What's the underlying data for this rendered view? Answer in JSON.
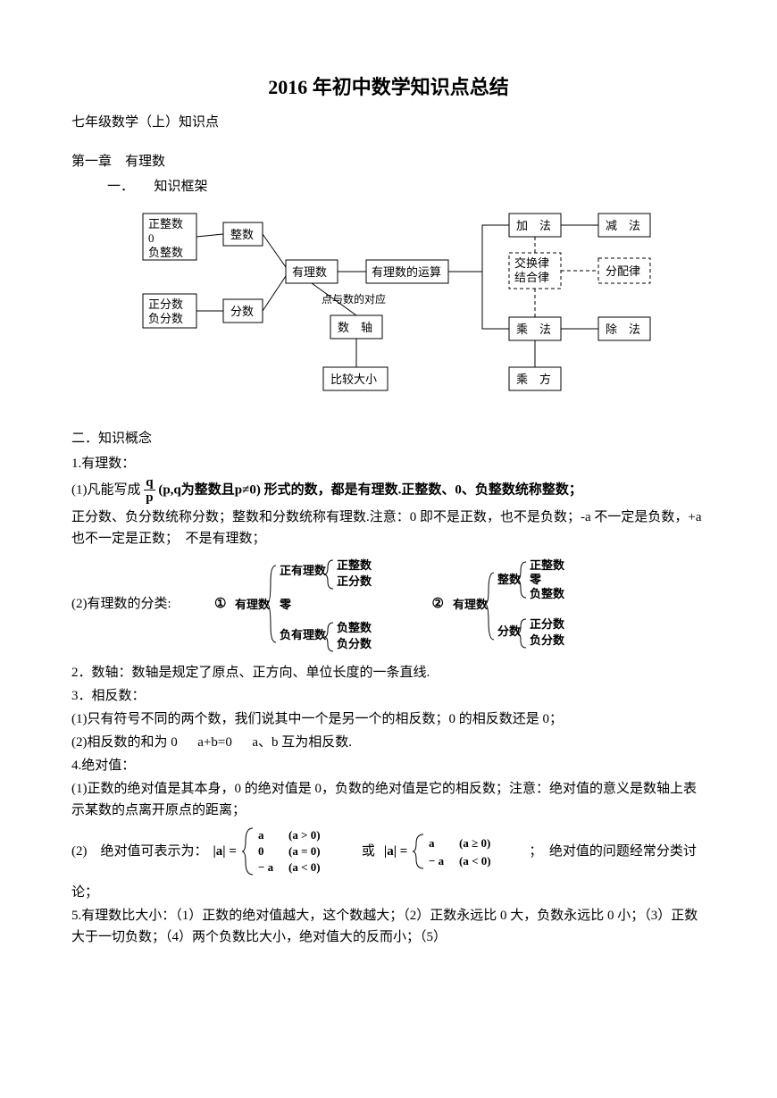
{
  "title": "2016 年初中数学知识点总结",
  "subtitle": "七年级数学（上）知识点",
  "chapter": "第一章　有理数",
  "section1": "一．　　知识框架",
  "diagram": {
    "background": "#ffffff",
    "stroke": "#000000",
    "nodes": {
      "posInt": "正整数\n0\n负整数",
      "posFrac": "正分数\n负分数",
      "int": "整数",
      "frac": "分数",
      "rational": "有理数",
      "rationalOp": "有理数的运算",
      "corresp": "点与数的对应",
      "axis": "数　轴",
      "compare": "比较大小",
      "add": "加　法",
      "sub": "减　法",
      "laws": "交换律\n结合律",
      "dist": "分配律",
      "mul": "乘　法",
      "div": "除　法",
      "pow": "乘　方"
    }
  },
  "section2": "二．知识概念",
  "item1_title": " 1.有理数：",
  "item1_1a": "(1)凡能写成 ",
  "frac": {
    "num": "q",
    "den": "p"
  },
  "item1_1b": " (p,q为整数且p≠0) 形式的数，都是有理数.正整数、0、负整数统称整数；",
  "item1_1c": "正分数、负分数统称分数；整数和分数统称有理数.注意：0 即不是正数，也不是负数；-a 不一定是负数，+a 也不一定是正数；　不是有理数；",
  "item1_2_label": "(2)有理数的分类:",
  "classify": {
    "c1_root": "有理数",
    "c1_a": "正有理数",
    "c1_a1": "正整数",
    "c1_a2": "正分数",
    "c1_b": "零",
    "c1_c": "负有理数",
    "c1_c1": "负整数",
    "c1_c2": "负分数",
    "c2_root": "有理数",
    "c2_a": "整数",
    "c2_a1": "正整数",
    "c2_a2": "零",
    "c2_a3": "负整数",
    "c2_b": "分数",
    "c2_b1": "正分数",
    "c2_b2": "负分数",
    "circ1": "①",
    "circ2": "②"
  },
  "item2": "2．数轴：数轴是规定了原点、正方向、单位长度的一条直线.",
  "item3": "3．相反数：",
  "item3_1": "(1)只有符号不同的两个数，我们说其中一个是另一个的相反数；0 的相反数还是 0；",
  "item3_2": "(2)相反数的和为 0 　 a+b=0 　 a、b 互为相反数.",
  "item4": "4.绝对值：",
  "item4_1": "(1)正数的绝对值是其本身，0 的绝对值是 0，负数的绝对值是它的相反数；注意：绝对值的意义是数轴上表示某数的点离开原点的距离；",
  "item4_2a": "(2)　绝对值可表示为：",
  "abs": {
    "lhs": "|a| =",
    "r1a": "a",
    "r1b": "(a > 0)",
    "r2a": "0",
    "r2b": "(a = 0)",
    "r3a": "− a",
    "r3b": "(a < 0)",
    "mid": "或",
    "s1a": "a",
    "s1b": "(a ≥ 0)",
    "s2a": "− a",
    "s2b": "(a < 0)"
  },
  "item4_2b": "；　绝对值的问题经常分类讨",
  "item4_2c": "论；",
  "item5": "5.有理数比大小：（1）正数的绝对值越大，这个数越大；（2）正数永远比 0 大，负数永远比 0 小；（3）正数大于一切负数；（4）两个负数比大小，绝对值大的反而小；（5）"
}
